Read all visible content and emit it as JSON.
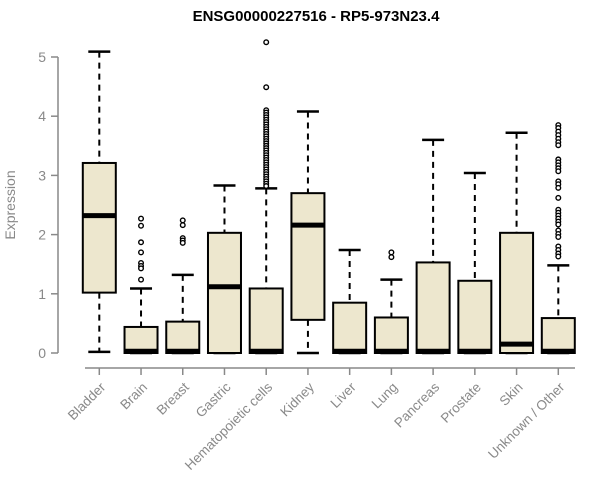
{
  "chart_data": {
    "type": "boxplot",
    "title": "ENSG00000227516 - RP5-973N23.4",
    "ylabel": "Expression",
    "xlabel": "",
    "ylim": [
      0,
      5
    ],
    "yticks": [
      0,
      1,
      2,
      3,
      4,
      5
    ],
    "grid": false,
    "legend": "none",
    "colors": {
      "box_fill": "#EDE7CE",
      "box_stroke": "#000000",
      "median": "#000000",
      "whisker": "#000000",
      "axis": "#898989",
      "tick_label": "#898989",
      "title": "#000000",
      "background": "#FFFFFF"
    },
    "categories": [
      "Bladder",
      "Brain",
      "Breast",
      "Gastric",
      "Hematopoietic cells",
      "Kidney",
      "Liver",
      "Lung",
      "Pancreas",
      "Prostate",
      "Skin",
      "Unknown / Other"
    ],
    "series": [
      {
        "category": "Bladder",
        "min": 0.02,
        "q1": 1.02,
        "median": 2.32,
        "q3": 3.21,
        "max": 5.09,
        "outliers": []
      },
      {
        "category": "Brain",
        "min": 0,
        "q1": 0,
        "median": 0.03,
        "q3": 0.44,
        "max": 1.09,
        "outliers": [
          2.27,
          2.15,
          1.87,
          1.7,
          1.52,
          1.47,
          1.43,
          1.24
        ]
      },
      {
        "category": "Breast",
        "min": 0,
        "q1": 0,
        "median": 0.03,
        "q3": 0.53,
        "max": 1.32,
        "outliers": [
          2.24,
          2.16,
          1.94,
          1.9,
          1.86
        ]
      },
      {
        "category": "Gastric",
        "min": 0,
        "q1": 0,
        "median": 1.12,
        "q3": 2.03,
        "max": 2.83,
        "outliers": []
      },
      {
        "category": "Hematopoietic cells",
        "min": 0,
        "q1": 0,
        "median": 0.03,
        "q3": 1.09,
        "max": 2.78,
        "outliers": [
          5.25,
          4.49,
          4.1,
          4.06,
          4.02,
          3.98,
          3.94,
          3.9,
          3.86,
          3.82,
          3.78,
          3.74,
          3.7,
          3.66,
          3.62,
          3.58,
          3.54,
          3.5,
          3.46,
          3.42,
          3.38,
          3.34,
          3.3,
          3.26,
          3.22,
          3.18,
          3.14,
          3.1,
          3.06,
          3.02,
          2.98,
          2.94,
          2.9,
          2.86,
          2.82
        ]
      },
      {
        "category": "Kidney",
        "min": 0,
        "q1": 0.56,
        "median": 2.16,
        "q3": 2.7,
        "max": 4.08,
        "outliers": []
      },
      {
        "category": "Liver",
        "min": 0,
        "q1": 0,
        "median": 0.03,
        "q3": 0.85,
        "max": 1.74,
        "outliers": []
      },
      {
        "category": "Lung",
        "min": 0,
        "q1": 0,
        "median": 0.03,
        "q3": 0.6,
        "max": 1.24,
        "outliers": [
          1.7,
          1.62
        ]
      },
      {
        "category": "Pancreas",
        "min": 0,
        "q1": 0,
        "median": 0.03,
        "q3": 1.53,
        "max": 3.6,
        "outliers": []
      },
      {
        "category": "Prostate",
        "min": 0,
        "q1": 0,
        "median": 0.03,
        "q3": 1.22,
        "max": 3.04,
        "outliers": []
      },
      {
        "category": "Skin",
        "min": 0,
        "q1": 0,
        "median": 0.15,
        "q3": 2.03,
        "max": 3.72,
        "outliers": []
      },
      {
        "category": "Unknown / Other",
        "min": 0,
        "q1": 0,
        "median": 0.03,
        "q3": 0.59,
        "max": 1.48,
        "outliers": [
          3.85,
          3.8,
          3.74,
          3.68,
          3.62,
          3.56,
          3.51,
          3.27,
          3.22,
          3.17,
          3.12,
          3.07,
          2.9,
          2.85,
          2.79,
          2.62,
          2.42,
          2.37,
          2.32,
          2.27,
          2.22,
          2.17,
          2.07,
          2.01,
          1.96,
          1.8,
          1.74,
          1.68,
          1.63
        ]
      }
    ]
  }
}
